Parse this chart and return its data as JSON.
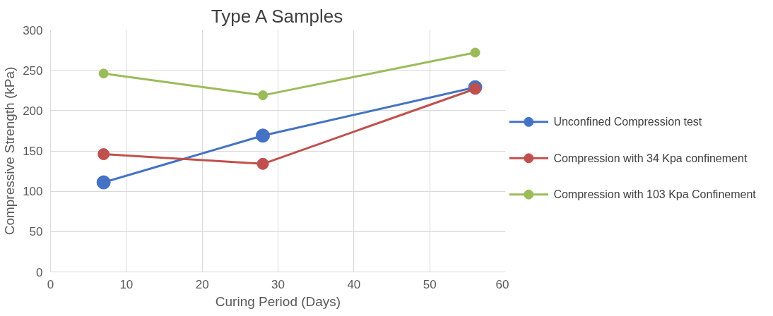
{
  "chart_data": {
    "type": "line",
    "title": "Type A Samples",
    "xlabel": "Curing Period (Days)",
    "ylabel": "Compressive Strength (kPa)",
    "x": [
      7,
      28,
      56
    ],
    "series": [
      {
        "name": "Unconfined Compression test",
        "color": "#4472c4",
        "values": [
          111,
          169,
          229
        ]
      },
      {
        "name": "Compression with 34 Kpa confinement",
        "color": "#c0504d",
        "values": [
          146,
          134,
          227
        ]
      },
      {
        "name": "Compression with 103 Kpa Confinement",
        "color": "#9bbb59",
        "values": [
          246,
          219,
          272
        ]
      }
    ],
    "xlim": [
      0,
      60
    ],
    "xticks": [
      0,
      10,
      20,
      30,
      40,
      50,
      60
    ],
    "ylim": [
      0,
      300
    ],
    "yticks": [
      0,
      50,
      100,
      150,
      200,
      250,
      300
    ],
    "grid": true,
    "legend": "right",
    "marker": "circle",
    "line_style": "solid"
  }
}
